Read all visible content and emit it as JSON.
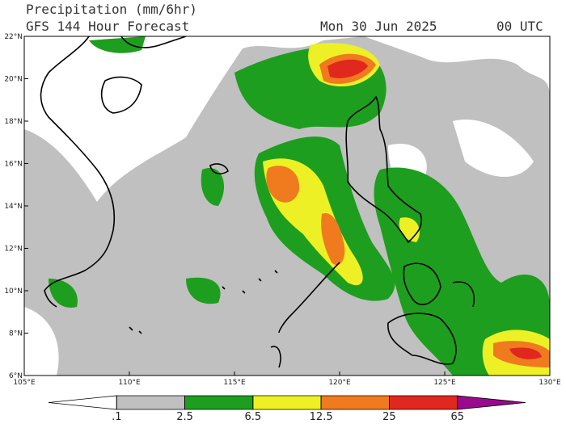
{
  "header": {
    "title": "Precipitation (mm/6hr)",
    "subtitle": "GFS 144 Hour Forecast",
    "date": "Mon 30 Jun 2025",
    "time": "00 UTC"
  },
  "map": {
    "lon_range": [
      105,
      130
    ],
    "lat_range": [
      6,
      22
    ],
    "lon_ticks": [
      {
        "value": 105,
        "label": "105°E"
      },
      {
        "value": 110,
        "label": "110°E"
      },
      {
        "value": 115,
        "label": "115°E"
      },
      {
        "value": 120,
        "label": "120°E"
      },
      {
        "value": 125,
        "label": "125°E"
      },
      {
        "value": 130,
        "label": "130°E"
      }
    ],
    "lat_ticks": [
      {
        "value": 6,
        "label": "6°N"
      },
      {
        "value": 8,
        "label": "8°N"
      },
      {
        "value": 10,
        "label": "10°N"
      },
      {
        "value": 12,
        "label": "12°N"
      },
      {
        "value": 14,
        "label": "14°N"
      },
      {
        "value": 16,
        "label": "16°N"
      },
      {
        "value": 18,
        "label": "18°N"
      },
      {
        "value": 20,
        "label": "20°N"
      },
      {
        "value": 22,
        "label": "22°N"
      }
    ]
  },
  "colorbar": {
    "levels": [
      {
        "value": 0.1,
        "label": ".1"
      },
      2.5,
      6.5,
      12.5,
      25,
      65
    ],
    "colors": [
      "#ffffff",
      "#c0c0c0",
      "#1e9e1e",
      "#eef026",
      "#f07a1e",
      "#e0281e",
      "#9a0a8c"
    ]
  }
}
